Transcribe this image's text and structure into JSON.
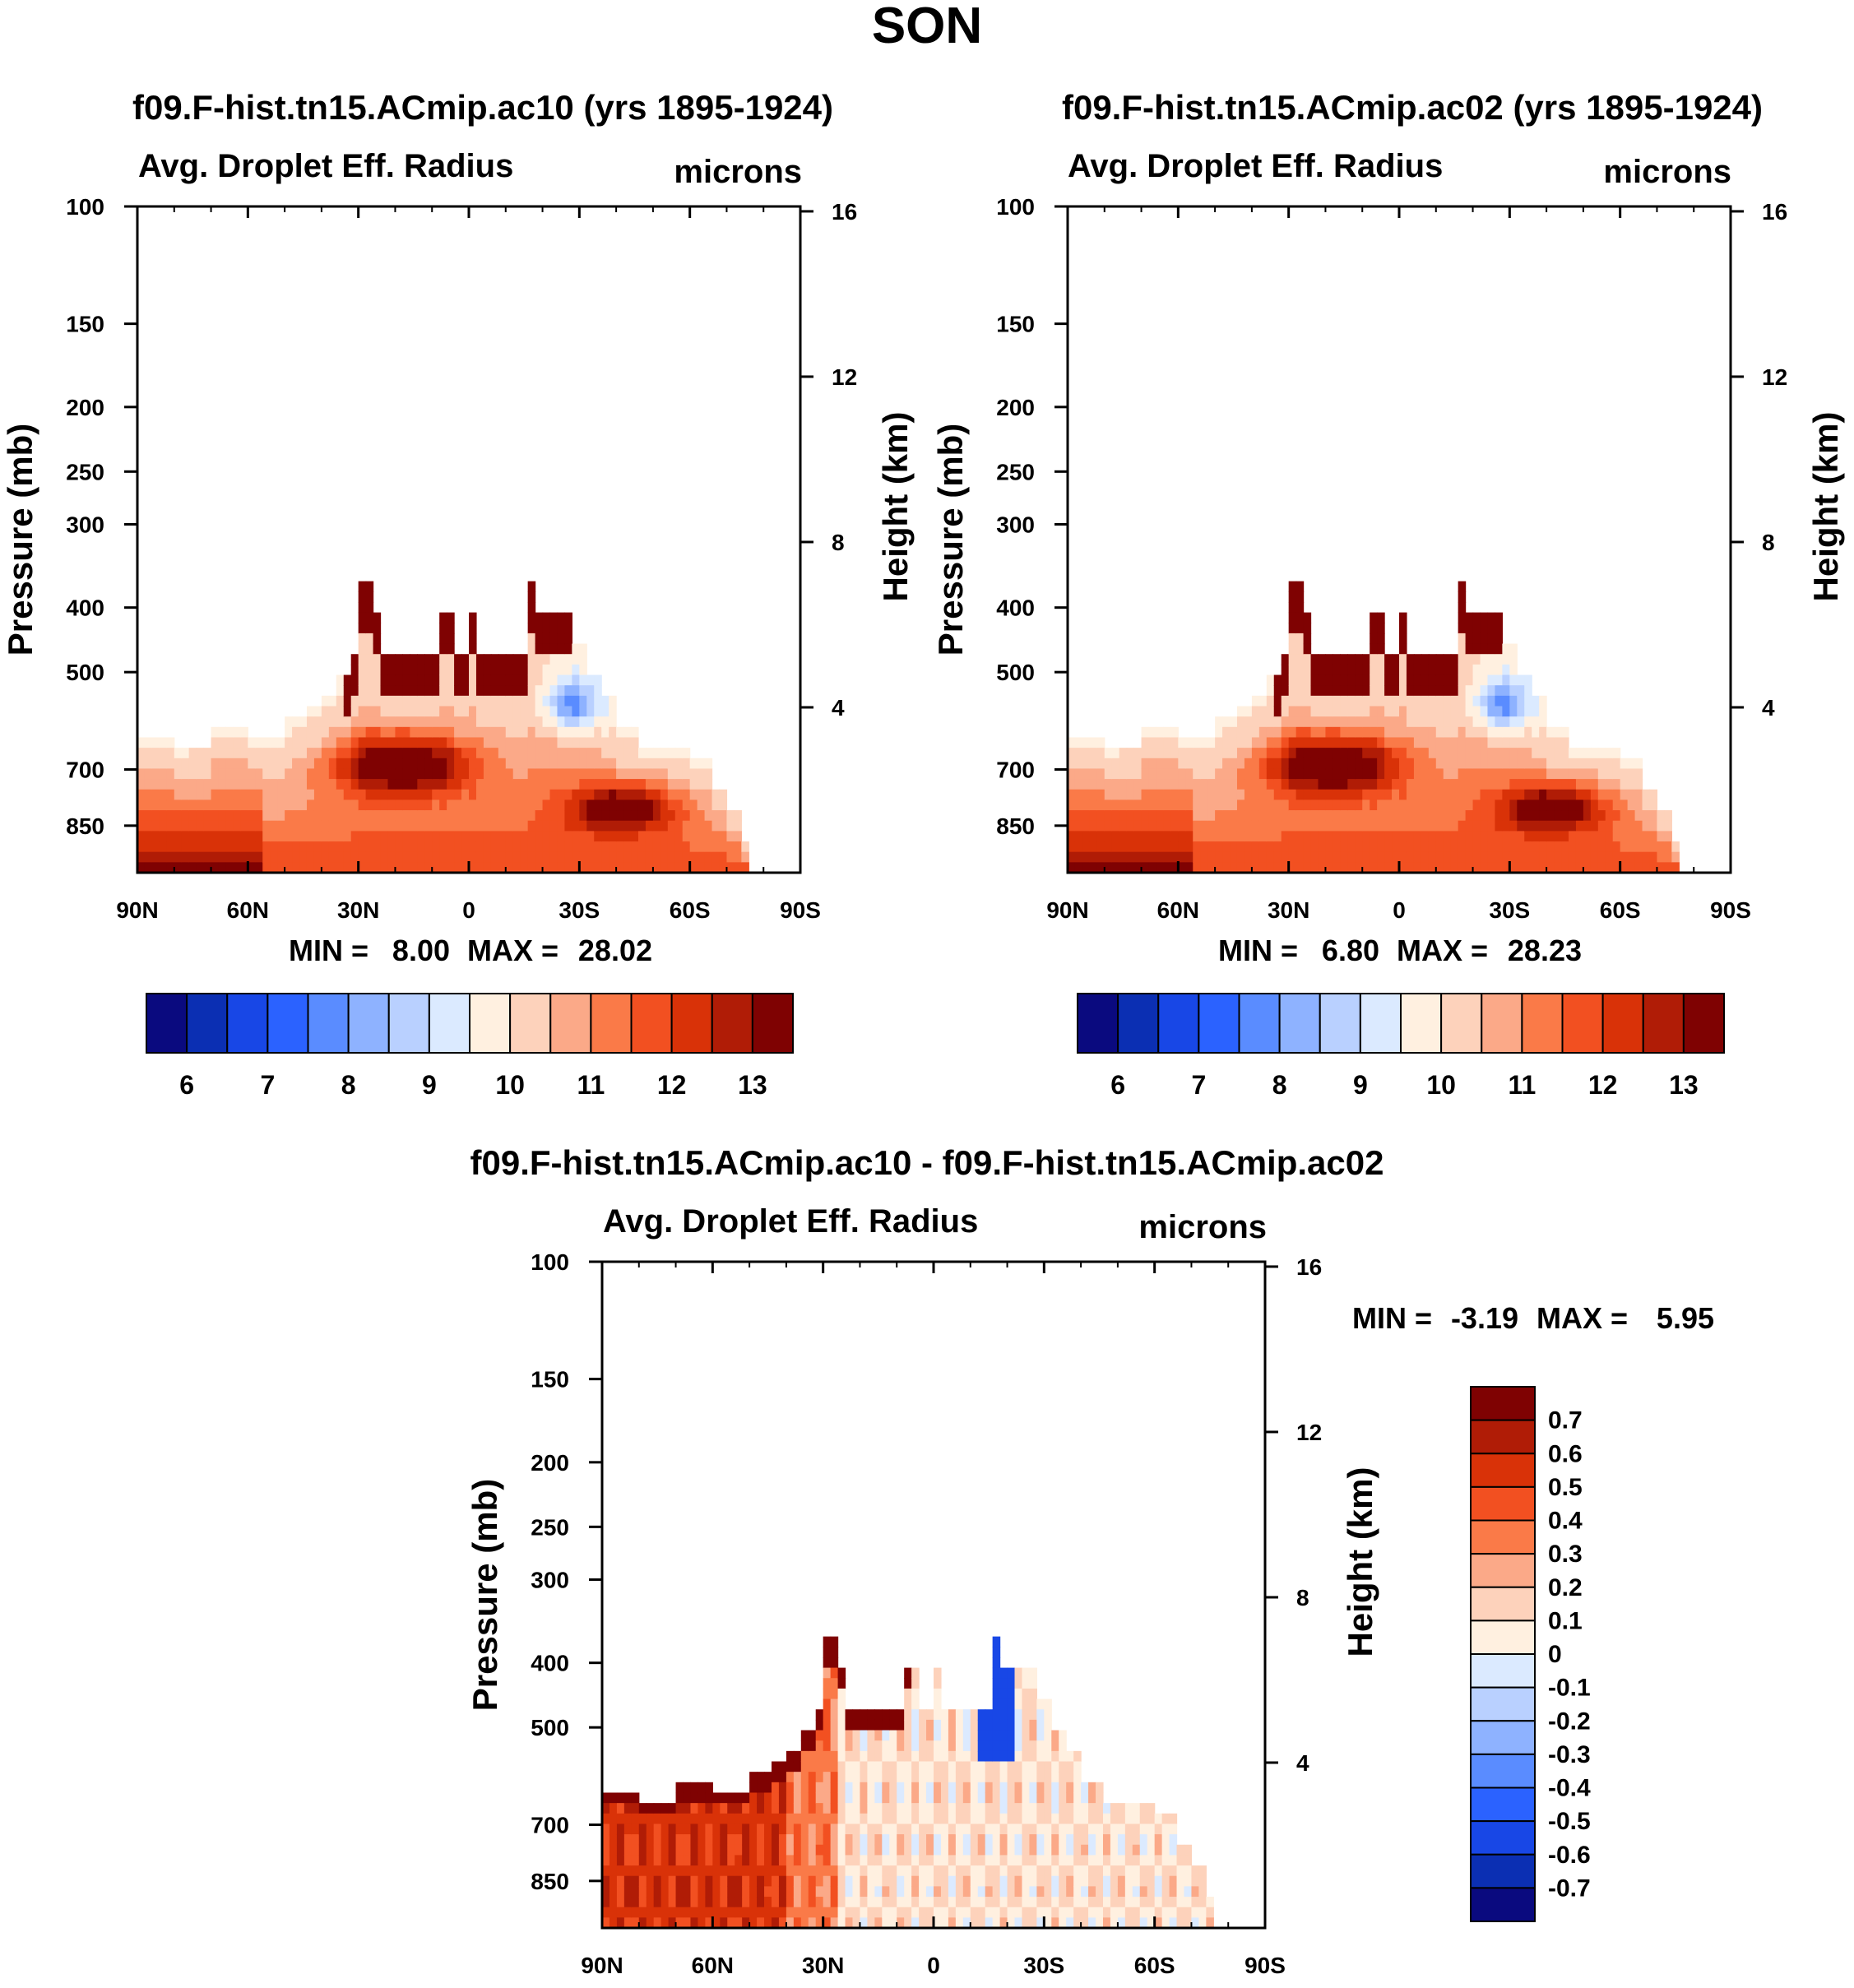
{
  "figure": {
    "title": "SON"
  },
  "axes_common": {
    "xticks": [
      "90N",
      "60N",
      "30N",
      "0",
      "30S",
      "60S",
      "90S"
    ],
    "pressure_ticks": [
      100,
      150,
      200,
      250,
      300,
      400,
      500,
      700,
      850
    ],
    "height_ticks": [
      16,
      12,
      8,
      4
    ],
    "left_label": "Pressure (mb)",
    "right_label": "Height (km)",
    "subtitle": "Avg. Droplet Eff. Radius",
    "units": "microns"
  },
  "chart_data": [
    {
      "type": "heatmap",
      "title": "f09.F-hist.tn15.ACmip.ac10 (yrs 1895-1924)",
      "subtitle": "Avg. Droplet Eff. Radius",
      "units": "microns",
      "xlabel": "",
      "ylabel": "Pressure (mb)",
      "y2label": "Height (km)",
      "xrange": [
        90,
        -90
      ],
      "yrange_mb": [
        1000,
        100
      ],
      "stats": {
        "min_label": "MIN =",
        "min": "8.00",
        "max_label": "MAX =",
        "max": "28.02"
      },
      "colorbar": {
        "labels": [
          "6",
          "7",
          "8",
          "9",
          "10",
          "11",
          "12",
          "13"
        ],
        "colors": [
          "#0a0a7f",
          "#0b2fb3",
          "#1847e6",
          "#2b62ff",
          "#5a8cff",
          "#8eb2ff",
          "#b9d0ff",
          "#dbeaff",
          "#fff0e0",
          "#fdd2bb",
          "#fba988",
          "#fa7a48",
          "#f25021",
          "#d93208",
          "#b01c06",
          "#7f0202"
        ]
      }
    },
    {
      "type": "heatmap",
      "title": "f09.F-hist.tn15.ACmip.ac02 (yrs 1895-1924)",
      "subtitle": "Avg. Droplet Eff. Radius",
      "units": "microns",
      "xlabel": "",
      "ylabel": "Pressure (mb)",
      "y2label": "Height (km)",
      "xrange": [
        90,
        -90
      ],
      "yrange_mb": [
        1000,
        100
      ],
      "stats": {
        "min_label": "MIN =",
        "min": "6.80",
        "max_label": "MAX =",
        "max": "28.23"
      },
      "colorbar": {
        "labels": [
          "6",
          "7",
          "8",
          "9",
          "10",
          "11",
          "12",
          "13"
        ],
        "colors": [
          "#0a0a7f",
          "#0b2fb3",
          "#1847e6",
          "#2b62ff",
          "#5a8cff",
          "#8eb2ff",
          "#b9d0ff",
          "#dbeaff",
          "#fff0e0",
          "#fdd2bb",
          "#fba988",
          "#fa7a48",
          "#f25021",
          "#d93208",
          "#b01c06",
          "#7f0202"
        ]
      }
    },
    {
      "type": "heatmap",
      "title": "f09.F-hist.tn15.ACmip.ac10 - f09.F-hist.tn15.ACmip.ac02",
      "subtitle": "Avg. Droplet Eff. Radius",
      "units": "microns",
      "xlabel": "",
      "ylabel": "Pressure (mb)",
      "y2label": "Height (km)",
      "xrange": [
        90,
        -90
      ],
      "yrange_mb": [
        1000,
        100
      ],
      "stats": {
        "min_label": "MIN =",
        "min": "-3.19",
        "max_label": "MAX =",
        "max": "5.95"
      },
      "colorbar": {
        "labels": [
          "0.7",
          "0.6",
          "0.5",
          "0.4",
          "0.3",
          "0.2",
          "0.1",
          "0",
          "-0.1",
          "-0.2",
          "-0.3",
          "-0.4",
          "-0.5",
          "-0.6",
          "-0.7"
        ],
        "colors": [
          "#7f0202",
          "#b01c06",
          "#d93208",
          "#f25021",
          "#fa7a48",
          "#fba988",
          "#fdd2bb",
          "#fff0e0",
          "#dbeaff",
          "#b9d0ff",
          "#8eb2ff",
          "#5a8cff",
          "#2b62ff",
          "#1847e6",
          "#0b2fb3",
          "#0a0a7f"
        ]
      }
    }
  ]
}
